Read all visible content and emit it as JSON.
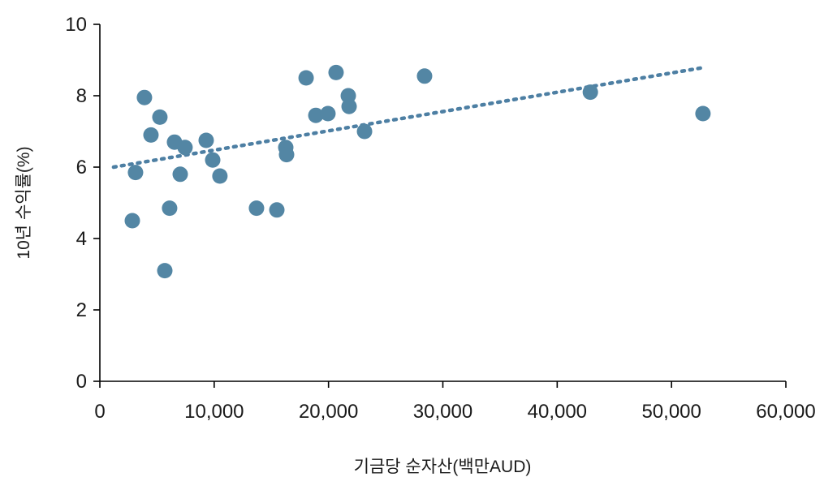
{
  "chart_data": {
    "type": "scatter",
    "title": "",
    "xlabel": "기금당 순자산(백만AUD)",
    "ylabel": "10년 수익률(%)",
    "xlim": [
      0,
      60000
    ],
    "ylim": [
      0,
      10
    ],
    "x_ticks": [
      0,
      10000,
      20000,
      30000,
      40000,
      50000,
      60000
    ],
    "x_tick_labels": [
      "0",
      "10,000",
      "20,000",
      "30,000",
      "40,000",
      "50,000",
      "60,000"
    ],
    "y_ticks": [
      0,
      2,
      4,
      6,
      8,
      10
    ],
    "y_tick_labels": [
      "0",
      "2",
      "4",
      "6",
      "8",
      "10"
    ],
    "grid": false,
    "legend": null,
    "marker_color": "#5386a4",
    "trend_color": "#4d7fa3",
    "points": [
      [
        2840,
        4.5
      ],
      [
        3120,
        5.85
      ],
      [
        3900,
        7.95
      ],
      [
        4470,
        6.9
      ],
      [
        5250,
        7.4
      ],
      [
        5680,
        3.1
      ],
      [
        6100,
        4.85
      ],
      [
        6530,
        6.7
      ],
      [
        7030,
        5.8
      ],
      [
        7450,
        6.55
      ],
      [
        9300,
        6.75
      ],
      [
        9870,
        6.2
      ],
      [
        10500,
        5.75
      ],
      [
        13700,
        4.85
      ],
      [
        15480,
        4.8
      ],
      [
        16260,
        6.55
      ],
      [
        16330,
        6.35
      ],
      [
        18040,
        8.5
      ],
      [
        18890,
        7.45
      ],
      [
        19950,
        7.5
      ],
      [
        20660,
        8.65
      ],
      [
        21730,
        8.0
      ],
      [
        21800,
        7.7
      ],
      [
        23150,
        7.0
      ],
      [
        28400,
        8.55
      ],
      [
        42900,
        8.1
      ],
      [
        52750,
        7.5
      ]
    ],
    "trendline": {
      "style": "dotted",
      "x": [
        1200,
        53000
      ],
      "y": [
        6.0,
        8.8
      ]
    }
  }
}
